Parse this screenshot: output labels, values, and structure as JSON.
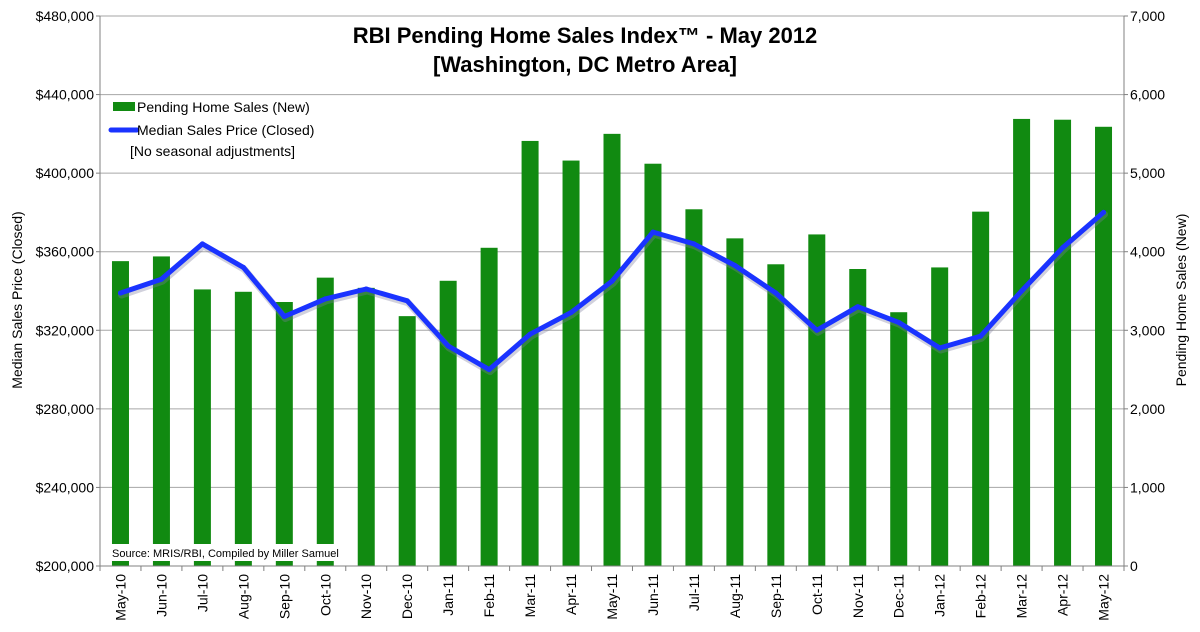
{
  "chart_data": {
    "type": "bar",
    "title": "RBI Pending Home Sales Index™ - May 2012",
    "subtitle": "[Washington, DC Metro Area]",
    "categories": [
      "May-10",
      "Jun-10",
      "Jul-10",
      "Aug-10",
      "Sep-10",
      "Oct-10",
      "Nov-10",
      "Dec-10",
      "Jan-11",
      "Feb-11",
      "Mar-11",
      "Apr-11",
      "May-11",
      "Jun-11",
      "Jul-11",
      "Aug-11",
      "Sep-11",
      "Oct-11",
      "Nov-11",
      "Dec-11",
      "Jan-12",
      "Feb-12",
      "Mar-12",
      "Apr-12",
      "May-12"
    ],
    "series": [
      {
        "name": "Pending Home Sales (New)",
        "type": "bar",
        "axis": "right",
        "color": "#118a11",
        "values": [
          3880,
          3940,
          3520,
          3490,
          3360,
          3670,
          3540,
          3180,
          3630,
          4050,
          5410,
          5160,
          5500,
          5120,
          4540,
          4170,
          3840,
          4220,
          3780,
          3230,
          3800,
          4510,
          5690,
          5680,
          5590
        ]
      },
      {
        "name": "Median Sales Price (Closed)",
        "type": "line",
        "axis": "left",
        "color": "#1a33ff",
        "values": [
          339000,
          346000,
          364000,
          352000,
          327000,
          336000,
          341000,
          335000,
          312000,
          300000,
          318000,
          329000,
          345000,
          370000,
          364000,
          353000,
          339000,
          320000,
          332000,
          324000,
          311000,
          317000,
          340000,
          362000,
          380000
        ]
      }
    ],
    "y_left": {
      "label": "Median Sales Price (Closed)",
      "ylim": [
        200000,
        480000
      ],
      "ticks": [
        "$200,000",
        "$240,000",
        "$280,000",
        "$320,000",
        "$360,000",
        "$400,000",
        "$440,000",
        "$480,000"
      ]
    },
    "y_right": {
      "label": "Pending Home Sales (New)",
      "ylim": [
        0,
        7000
      ],
      "ticks": [
        "0",
        "1,000",
        "2,000",
        "3,000",
        "4,000",
        "5,000",
        "6,000",
        "7,000"
      ]
    },
    "legend_note": "[No seasonal adjustments]",
    "source": "Source: MRIS/RBI, Compiled by Miller Samuel",
    "legend_position": "top-left",
    "grid": true
  },
  "colors": {
    "bar": "#118a11",
    "line": "#1a33ff",
    "grid": "#a6a6a6",
    "axis": "#808080"
  }
}
